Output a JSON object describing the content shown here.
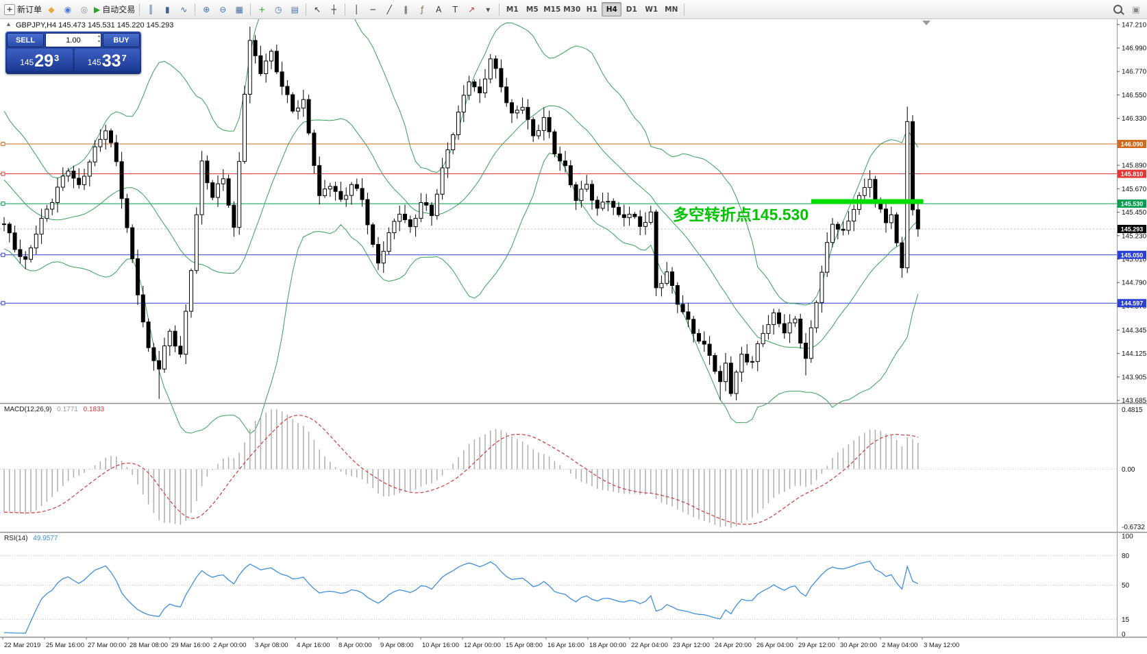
{
  "toolbar": {
    "items_left": [
      {
        "type": "labeled",
        "name": "new-order-button",
        "glyph": "+",
        "glyph_style": "chip",
        "label": "新订单"
      },
      {
        "type": "icon",
        "name": "metaeditor-icon",
        "glyph": "◆",
        "color": "#E2A93B"
      },
      {
        "type": "icon",
        "name": "mql5-community-icon",
        "glyph": "◉",
        "color": "#4B79D9"
      },
      {
        "type": "icon",
        "name": "sound-alert-icon",
        "glyph": "◎",
        "color": "#8A92A0"
      },
      {
        "type": "labeled",
        "name": "autotrading-button",
        "glyph": "▶",
        "glyph_color": "#2AA52C",
        "label": "自动交易"
      },
      {
        "type": "sep"
      },
      {
        "type": "icon",
        "name": "bar-chart-icon",
        "glyph": "║",
        "color": "#4A6EA9"
      },
      {
        "type": "icon",
        "name": "candlestick-chart-icon",
        "glyph": "▮",
        "color": "#3E5E93"
      },
      {
        "type": "icon",
        "name": "line-chart-icon",
        "glyph": "∿",
        "color": "#3E5E93"
      },
      {
        "type": "sep"
      },
      {
        "type": "icon",
        "name": "zoom-in-icon",
        "glyph": "⊕",
        "color": "#3F6FB5"
      },
      {
        "type": "icon",
        "name": "zoom-out-icon",
        "glyph": "⊖",
        "color": "#3F6FB5"
      },
      {
        "type": "icon",
        "name": "tile-windows-icon",
        "glyph": "▦",
        "color": "#4A6EA9"
      },
      {
        "type": "sep"
      },
      {
        "type": "icon",
        "name": "indicators-icon",
        "glyph": "+",
        "color": "#2AA52C"
      },
      {
        "type": "icon",
        "name": "periods-icon",
        "glyph": "◷",
        "color": "#4A6EA9"
      },
      {
        "type": "icon",
        "name": "templates-icon",
        "glyph": "▤",
        "color": "#4A6EA9"
      },
      {
        "type": "sep"
      },
      {
        "type": "icon",
        "name": "cursor-icon",
        "glyph": "↖",
        "color": "#333333"
      },
      {
        "type": "icon",
        "name": "crosshair-icon",
        "glyph": "┼",
        "color": "#333333"
      },
      {
        "type": "sep"
      },
      {
        "type": "icon",
        "name": "vertical-line-icon",
        "glyph": "│",
        "color": "#333333"
      },
      {
        "type": "icon",
        "name": "horizontal-line-icon",
        "glyph": "─",
        "color": "#333333"
      },
      {
        "type": "icon",
        "name": "trendline-icon",
        "glyph": "╱",
        "color": "#333333"
      },
      {
        "type": "icon",
        "name": "equidistant-channel-icon",
        "glyph": "∥",
        "color": "#333333"
      },
      {
        "type": "icon",
        "name": "fibonacci-icon",
        "glyph": "ƒ",
        "color": "#8A6D3B"
      },
      {
        "type": "icon",
        "name": "text-icon",
        "glyph": "A",
        "color": "#333333"
      },
      {
        "type": "icon",
        "name": "text-label-icon",
        "glyph": "T",
        "color": "#333333"
      },
      {
        "type": "icon",
        "name": "arrows-icon",
        "glyph": "↗",
        "color": "#C23B3B"
      },
      {
        "type": "icon",
        "name": "objects-dropdown-icon",
        "glyph": "▾",
        "color": "#555555"
      },
      {
        "type": "sep"
      }
    ],
    "timeframes": [
      "M1",
      "M5",
      "M15",
      "M30",
      "H1",
      "H4",
      "D1",
      "W1",
      "MN"
    ],
    "active_timeframe": "H4",
    "items_right": [
      {
        "type": "magnifier",
        "name": "search-icon"
      },
      {
        "type": "icon",
        "name": "chart-list-icon",
        "glyph": "▣",
        "color": "#888888"
      }
    ]
  },
  "chart": {
    "header_line": "GBPJPY,H4  145.473 145.531 145.220 145.293"
  },
  "one_click": {
    "collapse_glyph": "▲",
    "sell_label": "SELL",
    "buy_label": "BUY",
    "volume": "1.00",
    "spin_up": "▴",
    "spin_down": "▾",
    "sell_price": {
      "prefix": "145",
      "big": "29",
      "sup": "3"
    },
    "buy_price": {
      "prefix": "145",
      "big": "33",
      "sup": "7"
    }
  },
  "chart_data": {
    "type": "candlestick",
    "symbol": "GBPJPY",
    "timeframe": "H4",
    "current_bar": {
      "open": 145.473,
      "high": 145.531,
      "low": 145.22,
      "close": 145.293
    },
    "bid": 145.293,
    "price_min": 143.66,
    "price_max": 147.26,
    "y_ticks": [
      "147.210",
      "146.990",
      "146.770",
      "146.550",
      "146.330",
      "145.890",
      "145.670",
      "145.450",
      "145.230",
      "145.010",
      "144.790",
      "144.570",
      "144.345",
      "144.125",
      "143.905",
      "143.685"
    ],
    "current_price_label": {
      "label": "145.293",
      "color": "#000000"
    },
    "hlines": [
      {
        "price": 146.09,
        "label": "146.090",
        "color": "#D2691E"
      },
      {
        "price": 145.81,
        "label": "145.810",
        "color": "#E53535"
      },
      {
        "price": 145.53,
        "label": "145.530",
        "color": "#009E4D"
      },
      {
        "price": 145.05,
        "label": "145.050",
        "color": "#2A3FD5"
      },
      {
        "price": 144.597,
        "label": "144.597",
        "color": "#2A3FD5"
      }
    ],
    "thick_line": {
      "price": 145.55,
      "from_candle": 151,
      "to_candle": 172,
      "color": "#00DC00"
    },
    "annotation": {
      "text": "多空转折点145.530",
      "color": "#00C400"
    },
    "bollinger": {
      "period": 20,
      "deviation": 2,
      "color": "#36A058"
    },
    "keyframes": [
      [
        -30,
        147.05
      ],
      [
        -22,
        146.55
      ],
      [
        -14,
        146.0
      ],
      [
        -8,
        145.6
      ],
      [
        -3,
        145.4
      ],
      [
        0,
        145.32
      ],
      [
        2,
        145.12
      ],
      [
        4,
        145.0
      ],
      [
        6,
        145.28
      ],
      [
        9,
        145.55
      ],
      [
        12,
        145.86
      ],
      [
        14,
        145.7
      ],
      [
        16,
        145.95
      ],
      [
        19,
        146.22
      ],
      [
        21,
        145.9
      ],
      [
        23,
        145.3
      ],
      [
        25,
        144.72
      ],
      [
        27,
        144.16
      ],
      [
        29,
        143.98
      ],
      [
        31,
        144.32
      ],
      [
        33,
        144.1
      ],
      [
        35,
        144.95
      ],
      [
        37,
        145.92
      ],
      [
        39,
        145.58
      ],
      [
        41,
        145.76
      ],
      [
        43,
        145.28
      ],
      [
        45,
        146.6
      ],
      [
        46,
        147.06
      ],
      [
        48,
        146.78
      ],
      [
        50,
        146.92
      ],
      [
        52,
        146.62
      ],
      [
        54,
        146.42
      ],
      [
        56,
        146.5
      ],
      [
        58,
        145.92
      ],
      [
        59,
        145.58
      ],
      [
        61,
        145.7
      ],
      [
        63,
        145.54
      ],
      [
        65,
        145.73
      ],
      [
        67,
        145.6
      ],
      [
        69,
        145.12
      ],
      [
        70,
        144.96
      ],
      [
        72,
        145.22
      ],
      [
        74,
        145.46
      ],
      [
        76,
        145.31
      ],
      [
        78,
        145.56
      ],
      [
        80,
        145.42
      ],
      [
        83,
        146.02
      ],
      [
        85,
        146.38
      ],
      [
        87,
        146.72
      ],
      [
        89,
        146.55
      ],
      [
        91,
        146.88
      ],
      [
        93,
        146.62
      ],
      [
        95,
        146.36
      ],
      [
        97,
        146.48
      ],
      [
        99,
        146.16
      ],
      [
        101,
        146.32
      ],
      [
        103,
        146.0
      ],
      [
        105,
        145.86
      ],
      [
        107,
        145.6
      ],
      [
        109,
        145.72
      ],
      [
        111,
        145.46
      ],
      [
        113,
        145.56
      ],
      [
        115,
        145.4
      ],
      [
        117,
        145.46
      ],
      [
        119,
        145.34
      ],
      [
        121,
        145.42
      ],
      [
        122,
        144.72
      ],
      [
        124,
        144.86
      ],
      [
        126,
        144.62
      ],
      [
        128,
        144.44
      ],
      [
        130,
        144.26
      ],
      [
        132,
        144.1
      ],
      [
        134,
        143.82
      ],
      [
        135,
        144.02
      ],
      [
        136,
        143.78
      ],
      [
        138,
        144.12
      ],
      [
        140,
        144.06
      ],
      [
        142,
        144.32
      ],
      [
        144,
        144.46
      ],
      [
        146,
        144.34
      ],
      [
        148,
        144.46
      ],
      [
        150,
        144.08
      ],
      [
        152,
        144.62
      ],
      [
        154,
        145.12
      ],
      [
        155,
        145.34
      ],
      [
        157,
        145.26
      ],
      [
        159,
        145.52
      ],
      [
        161,
        145.68
      ],
      [
        162,
        145.78
      ],
      [
        163,
        145.52
      ],
      [
        165,
        145.36
      ],
      [
        166,
        145.42
      ],
      [
        167,
        145.14
      ],
      [
        168,
        144.96
      ],
      [
        169,
        146.3
      ],
      [
        170,
        145.47
      ],
      [
        171,
        145.293
      ]
    ],
    "candle_overrides": {
      "29": {
        "l": 143.7
      },
      "46": {
        "h": 147.19
      },
      "134": {
        "l": 143.69
      },
      "150": {
        "l": 143.92
      },
      "169": {
        "c": 146.3,
        "h": 146.44,
        "l": 144.88
      },
      "170": {
        "c": 145.473,
        "h": 146.36,
        "l": 145.42
      },
      "171": {
        "o": 145.473,
        "h": 145.531,
        "l": 145.22,
        "c": 145.293
      }
    },
    "x_labels": [
      "22 Mar 2019",
      "25 Mar 16:00",
      "27 Mar 00:00",
      "28 Mar 08:00",
      "29 Mar 16:00",
      "2 Apr 00:00",
      "3 Apr 08:00",
      "4 Apr 16:00",
      "8 Apr 00:00",
      "9 Apr 08:00",
      "10 Apr 16:00",
      "12 Apr 00:00",
      "15 Apr 08:00",
      "16 Apr 16:00",
      "18 Apr 00:00",
      "22 Apr 04:00",
      "23 Apr 12:00",
      "24 Apr 20:00",
      "26 Apr 04:00",
      "29 Apr 12:00",
      "30 Apr 20:00",
      "2 May 04:00",
      "3 May 12:00"
    ],
    "macd": {
      "label": "MACD(12,26,9)",
      "value1": "0.1771",
      "value2": "0.1833",
      "histogram_color": "#ADADAD",
      "signal_color": "#D23B3B",
      "scale": [
        "0.4815",
        "0.00",
        "-0.6732"
      ]
    },
    "rsi": {
      "label": "RSI(14)",
      "value": "49.9577",
      "line_color": "#3E8EDE",
      "levels": [
        "100",
        "80",
        "50",
        "15",
        "0"
      ],
      "dashed_levels": [
        80,
        50,
        15
      ]
    }
  }
}
